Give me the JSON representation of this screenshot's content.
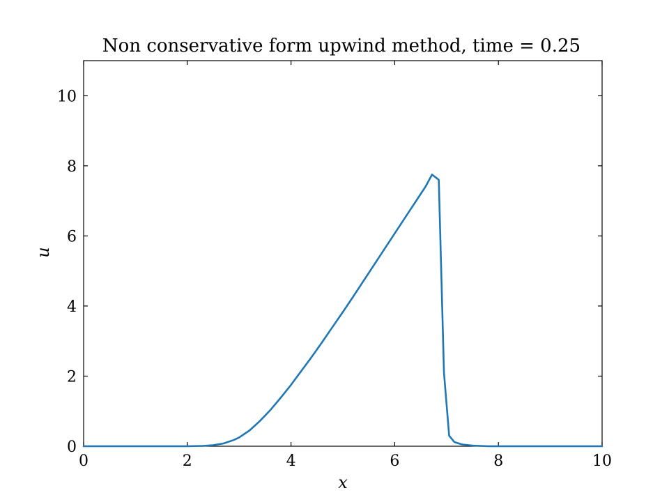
{
  "chart_data": {
    "type": "line",
    "title": "Non conservative form upwind method, time = 0.25",
    "xlabel": "x",
    "ylabel": "u",
    "xlim": [
      0,
      10
    ],
    "ylim": [
      0,
      11
    ],
    "xticks": [
      0,
      2,
      4,
      6,
      8,
      10
    ],
    "yticks": [
      0,
      2,
      4,
      6,
      8,
      10
    ],
    "xtick_labels": [
      "0",
      "2",
      "4",
      "6",
      "8",
      "10"
    ],
    "ytick_labels": [
      "0",
      "2",
      "4",
      "6",
      "8",
      "10"
    ],
    "grid": false,
    "legend": "none",
    "tick_direction": "in",
    "ticks_on_all_sides": true,
    "series": [
      {
        "color": "#1f77b4",
        "x": [
          0,
          1.0,
          2.0,
          2.3,
          2.5,
          2.7,
          2.9,
          3.0,
          3.2,
          3.4,
          3.6,
          3.8,
          4.0,
          4.2,
          4.4,
          4.6,
          4.8,
          5.0,
          5.2,
          5.4,
          5.6,
          5.8,
          6.0,
          6.2,
          6.4,
          6.6,
          6.72,
          6.85,
          6.95,
          7.05,
          7.15,
          7.3,
          7.5,
          7.8,
          8.0,
          9.0,
          10.0
        ],
        "y": [
          0,
          0,
          0,
          0.01,
          0.03,
          0.08,
          0.18,
          0.25,
          0.45,
          0.72,
          1.03,
          1.38,
          1.75,
          2.15,
          2.55,
          2.97,
          3.4,
          3.83,
          4.27,
          4.72,
          5.17,
          5.62,
          6.07,
          6.52,
          6.97,
          7.42,
          7.75,
          7.6,
          2.1,
          0.3,
          0.12,
          0.05,
          0.02,
          0.0,
          0.0,
          0.0,
          0.0
        ]
      }
    ]
  }
}
